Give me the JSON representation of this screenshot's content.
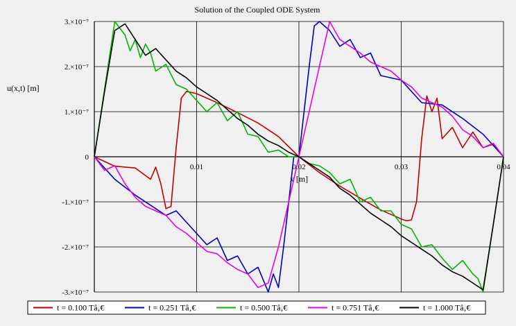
{
  "chart_data": {
    "type": "line",
    "title": "Solution of the Coupled ODE System",
    "xlabel": "x [m]",
    "ylabel": "u(x,t) [m]",
    "xlim": [
      0,
      0.04
    ],
    "ylim": [
      -3e-07,
      3e-07
    ],
    "grid": true,
    "legend_position": "bottom",
    "x_ticks": [
      {
        "value": 0.01,
        "label": "0.01"
      },
      {
        "value": 0.02,
        "label": "0.02"
      },
      {
        "value": 0.03,
        "label": "0.03"
      },
      {
        "value": 0.04,
        "label": "0.04"
      }
    ],
    "y_ticks": [
      {
        "value": 3e-07,
        "label": "3.×10⁻⁷"
      },
      {
        "value": 2e-07,
        "label": "2.×10⁻⁷"
      },
      {
        "value": 1e-07,
        "label": "1.×10⁻⁷"
      },
      {
        "value": 0,
        "label": "0"
      },
      {
        "value": -1e-07,
        "label": "-1.×10⁻⁷"
      },
      {
        "value": -2e-07,
        "label": "-2.×10⁻⁷"
      },
      {
        "value": -3e-07,
        "label": "-3.×10⁻⁷"
      }
    ],
    "series": [
      {
        "name": "t = 0.100 Tâ‚€",
        "color": "#c00000",
        "x": [
          0,
          0.002,
          0.004,
          0.0055,
          0.006,
          0.0065,
          0.007,
          0.0075,
          0.008,
          0.0085,
          0.009,
          0.01,
          0.012,
          0.014,
          0.016,
          0.018,
          0.02,
          0.022,
          0.024,
          0.026,
          0.028,
          0.03,
          0.0305,
          0.031,
          0.0315,
          0.032,
          0.0325,
          0.033,
          0.0335,
          0.034,
          0.035,
          0.036,
          0.037,
          0.038,
          0.039,
          0.0395,
          0.04
        ],
        "y": [
          0,
          -2.1e-08,
          -2.5e-08,
          -5e-08,
          -2.3e-08,
          -6e-08,
          -1.15e-07,
          -1.1e-07,
          2e-08,
          1.3e-07,
          1.45e-07,
          1.4e-07,
          1.2e-07,
          9.8e-08,
          7.5e-08,
          4.5e-08,
          0,
          -3.5e-08,
          -6.5e-08,
          -9.2e-08,
          -1.18e-07,
          -1.38e-07,
          -1.42e-07,
          -1.4e-07,
          -1e-07,
          4e-08,
          1.35e-07,
          1e-07,
          1.3e-07,
          4e-08,
          6.5e-08,
          2e-08,
          5.5e-08,
          2e-08,
          2.8e-08,
          1.5e-08,
          0
        ]
      },
      {
        "name": "t = 0.251 Tâ‚€",
        "color": "#0000b4",
        "x": [
          0,
          0.002,
          0.004,
          0.006,
          0.007,
          0.008,
          0.01,
          0.011,
          0.012,
          0.013,
          0.014,
          0.015,
          0.016,
          0.017,
          0.0175,
          0.018,
          0.0185,
          0.019,
          0.0195,
          0.02,
          0.0205,
          0.021,
          0.0215,
          0.022,
          0.023,
          0.024,
          0.025,
          0.026,
          0.027,
          0.028,
          0.03,
          0.032,
          0.034,
          0.036,
          0.038,
          0.04
        ],
        "y": [
          0,
          -5e-08,
          -8.5e-08,
          -1.15e-07,
          -1.3e-07,
          -1.2e-07,
          -1.7e-07,
          -1.95e-07,
          -1.8e-07,
          -2.3e-07,
          -2.2e-07,
          -2.6e-07,
          -2.45e-07,
          -3e-07,
          -2.6e-07,
          -2.9e-07,
          -2e-07,
          -1e-07,
          0,
          0,
          1e-07,
          2e-07,
          2.9e-07,
          3e-07,
          2.8e-07,
          2.45e-07,
          2.6e-07,
          2.2e-07,
          2.3e-07,
          1.8e-07,
          1.7e-07,
          1.2e-07,
          1.15e-07,
          8.5e-08,
          5e-08,
          0
        ]
      },
      {
        "name": "t = 0.500 Tâ‚€",
        "color": "#00b400",
        "x": [
          0,
          0.001,
          0.002,
          0.003,
          0.0035,
          0.004,
          0.0045,
          0.005,
          0.0055,
          0.006,
          0.007,
          0.008,
          0.009,
          0.01,
          0.011,
          0.012,
          0.013,
          0.014,
          0.015,
          0.016,
          0.017,
          0.018,
          0.019,
          0.02,
          0.021,
          0.022,
          0.023,
          0.024,
          0.025,
          0.026,
          0.027,
          0.028,
          0.029,
          0.03,
          0.031,
          0.032,
          0.033,
          0.034,
          0.035,
          0.036,
          0.037,
          0.0375,
          0.038,
          0.039,
          0.04
        ],
        "y": [
          0,
          1.5e-07,
          3e-07,
          2.7e-07,
          2.35e-07,
          2.6e-07,
          2.2e-07,
          2.5e-07,
          2.3e-07,
          1.9e-07,
          2.05e-07,
          1.6e-07,
          1.5e-07,
          1.25e-07,
          1e-07,
          1.2e-07,
          8e-08,
          1e-07,
          5e-08,
          4.5e-08,
          1e-08,
          1.5e-08,
          0,
          0,
          -1.5e-08,
          -2e-08,
          -3.5e-08,
          -6e-08,
          -5e-08,
          -1e-07,
          -9e-08,
          -1.2e-07,
          -1.2e-07,
          -1.5e-07,
          -1.6e-07,
          -2e-07,
          -1.95e-07,
          -2.25e-07,
          -2.5e-07,
          -2.3e-07,
          -2.6e-07,
          -2.7e-07,
          -3e-07,
          -1.5e-07,
          0
        ]
      },
      {
        "name": "t = 0.751 Tâ‚€",
        "color": "#e600e6",
        "x": [
          0,
          0.001,
          0.002,
          0.003,
          0.004,
          0.005,
          0.006,
          0.007,
          0.008,
          0.009,
          0.01,
          0.011,
          0.012,
          0.013,
          0.014,
          0.015,
          0.016,
          0.017,
          0.018,
          0.019,
          0.02,
          0.021,
          0.022,
          0.023,
          0.024,
          0.025,
          0.026,
          0.027,
          0.028,
          0.029,
          0.03,
          0.031,
          0.032,
          0.033,
          0.034,
          0.035,
          0.036,
          0.037,
          0.038,
          0.039,
          0.04
        ],
        "y": [
          0,
          -3e-08,
          -2e-08,
          -6e-08,
          -9e-08,
          -1.1e-07,
          -1.2e-07,
          -1.3e-07,
          -1.55e-07,
          -1.7e-07,
          -1.9e-07,
          -2.1e-07,
          -2.15e-07,
          -2.35e-07,
          -2.5e-07,
          -2.6e-07,
          -2.9e-07,
          -2.8e-07,
          -2e-07,
          -1e-07,
          0,
          1e-07,
          2e-07,
          3e-07,
          2.6e-07,
          2.45e-07,
          2.3e-07,
          2.1e-07,
          2e-07,
          1.9e-07,
          1.7e-07,
          1.55e-07,
          1.3e-07,
          1.2e-07,
          1.1e-07,
          9e-08,
          6e-08,
          4.5e-08,
          2e-08,
          3e-08,
          0
        ]
      },
      {
        "name": "t = 1.000 Tâ‚€",
        "color": "#000000",
        "x": [
          0,
          0.001,
          0.002,
          0.003,
          0.004,
          0.005,
          0.006,
          0.007,
          0.008,
          0.009,
          0.01,
          0.011,
          0.012,
          0.013,
          0.014,
          0.015,
          0.016,
          0.017,
          0.018,
          0.019,
          0.02,
          0.021,
          0.022,
          0.023,
          0.024,
          0.025,
          0.026,
          0.027,
          0.028,
          0.029,
          0.03,
          0.031,
          0.032,
          0.033,
          0.034,
          0.035,
          0.036,
          0.037,
          0.038,
          0.039,
          0.04
        ],
        "y": [
          0,
          1.45e-07,
          2.8e-07,
          2.95e-07,
          2.6e-07,
          2.25e-07,
          2.4e-07,
          2.15e-07,
          1.9e-07,
          1.75e-07,
          1.55e-07,
          1.4e-07,
          1.25e-07,
          1.05e-07,
          8.5e-08,
          7e-08,
          5e-08,
          3.5e-08,
          2.5e-08,
          1e-08,
          0,
          -1.5e-08,
          -3e-08,
          -4.5e-08,
          -7e-08,
          -8.5e-08,
          -1.05e-07,
          -1.25e-07,
          -1.4e-07,
          -1.55e-07,
          -1.75e-07,
          -1.9e-07,
          -2.05e-07,
          -2.2e-07,
          -2.4e-07,
          -2.55e-07,
          -2.65e-07,
          -2.8e-07,
          -2.95e-07,
          -1.5e-07,
          0
        ]
      }
    ]
  }
}
